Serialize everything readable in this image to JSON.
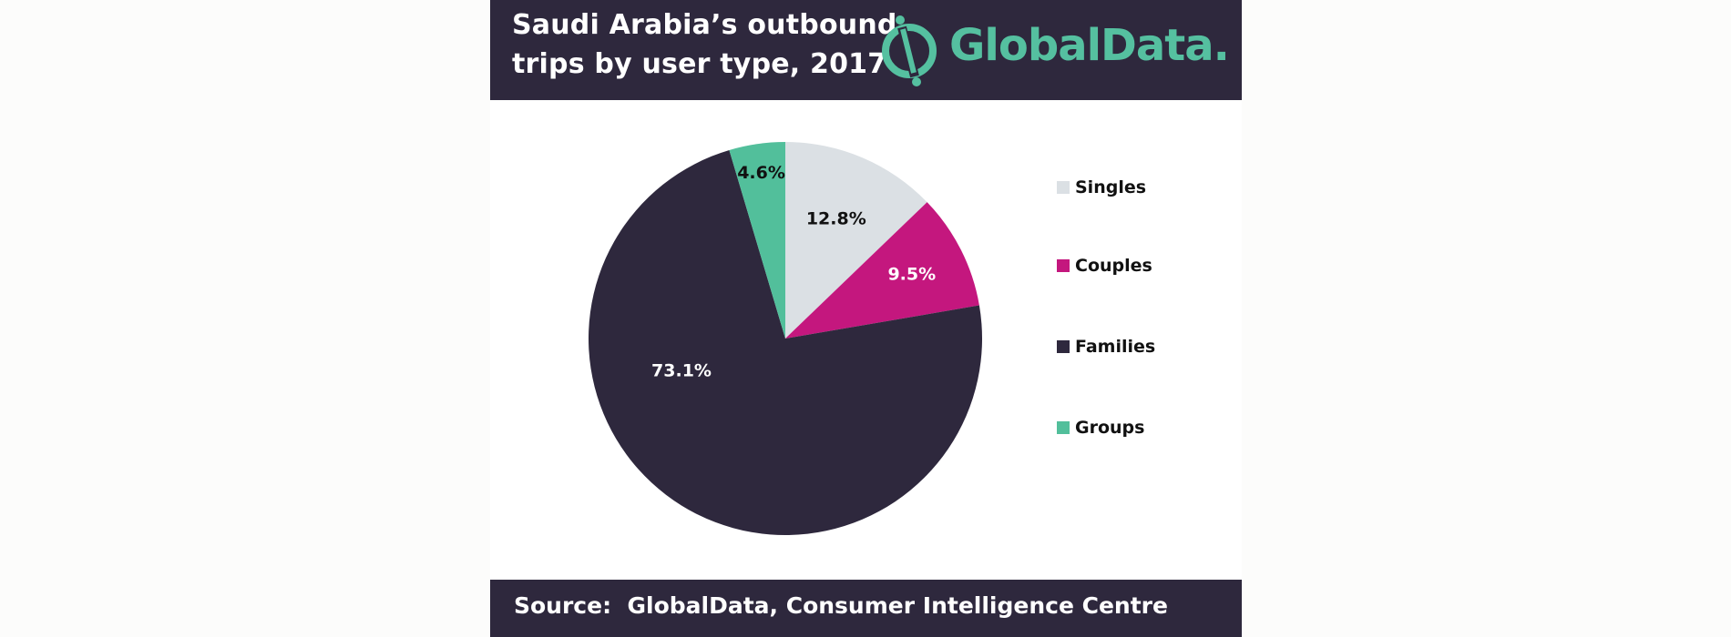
{
  "header": {
    "title_line1": "Saudi Arabia’s outbound",
    "title_line2": "trips by user type, 2017",
    "logo_text": "GlobalData."
  },
  "footer": {
    "source": "Source:  GlobalData, Consumer Intelligence Centre"
  },
  "chart_data": {
    "type": "pie",
    "title": "Saudi Arabia’s outbound trips by user type, 2017",
    "slices": [
      {
        "label": "Singles",
        "value": 12.8,
        "display": "12.8%",
        "color": "#dbe0e4",
        "label_color": "#111111"
      },
      {
        "label": "Couples",
        "value": 9.5,
        "display": "9.5%",
        "color": "#c4177e",
        "label_color": "#ffffff"
      },
      {
        "label": "Families",
        "value": 73.1,
        "display": "73.1%",
        "color": "#2e283d",
        "label_color": "#ffffff"
      },
      {
        "label": "Groups",
        "value": 4.6,
        "display": "4.6%",
        "color": "#52bf9b",
        "label_color": "#111111"
      }
    ],
    "start": "12 o'clock",
    "direction": "clockwise",
    "legend_position": "right"
  },
  "colors": {
    "header_bg": "#2e283d",
    "brand_green": "#55c0a0"
  }
}
